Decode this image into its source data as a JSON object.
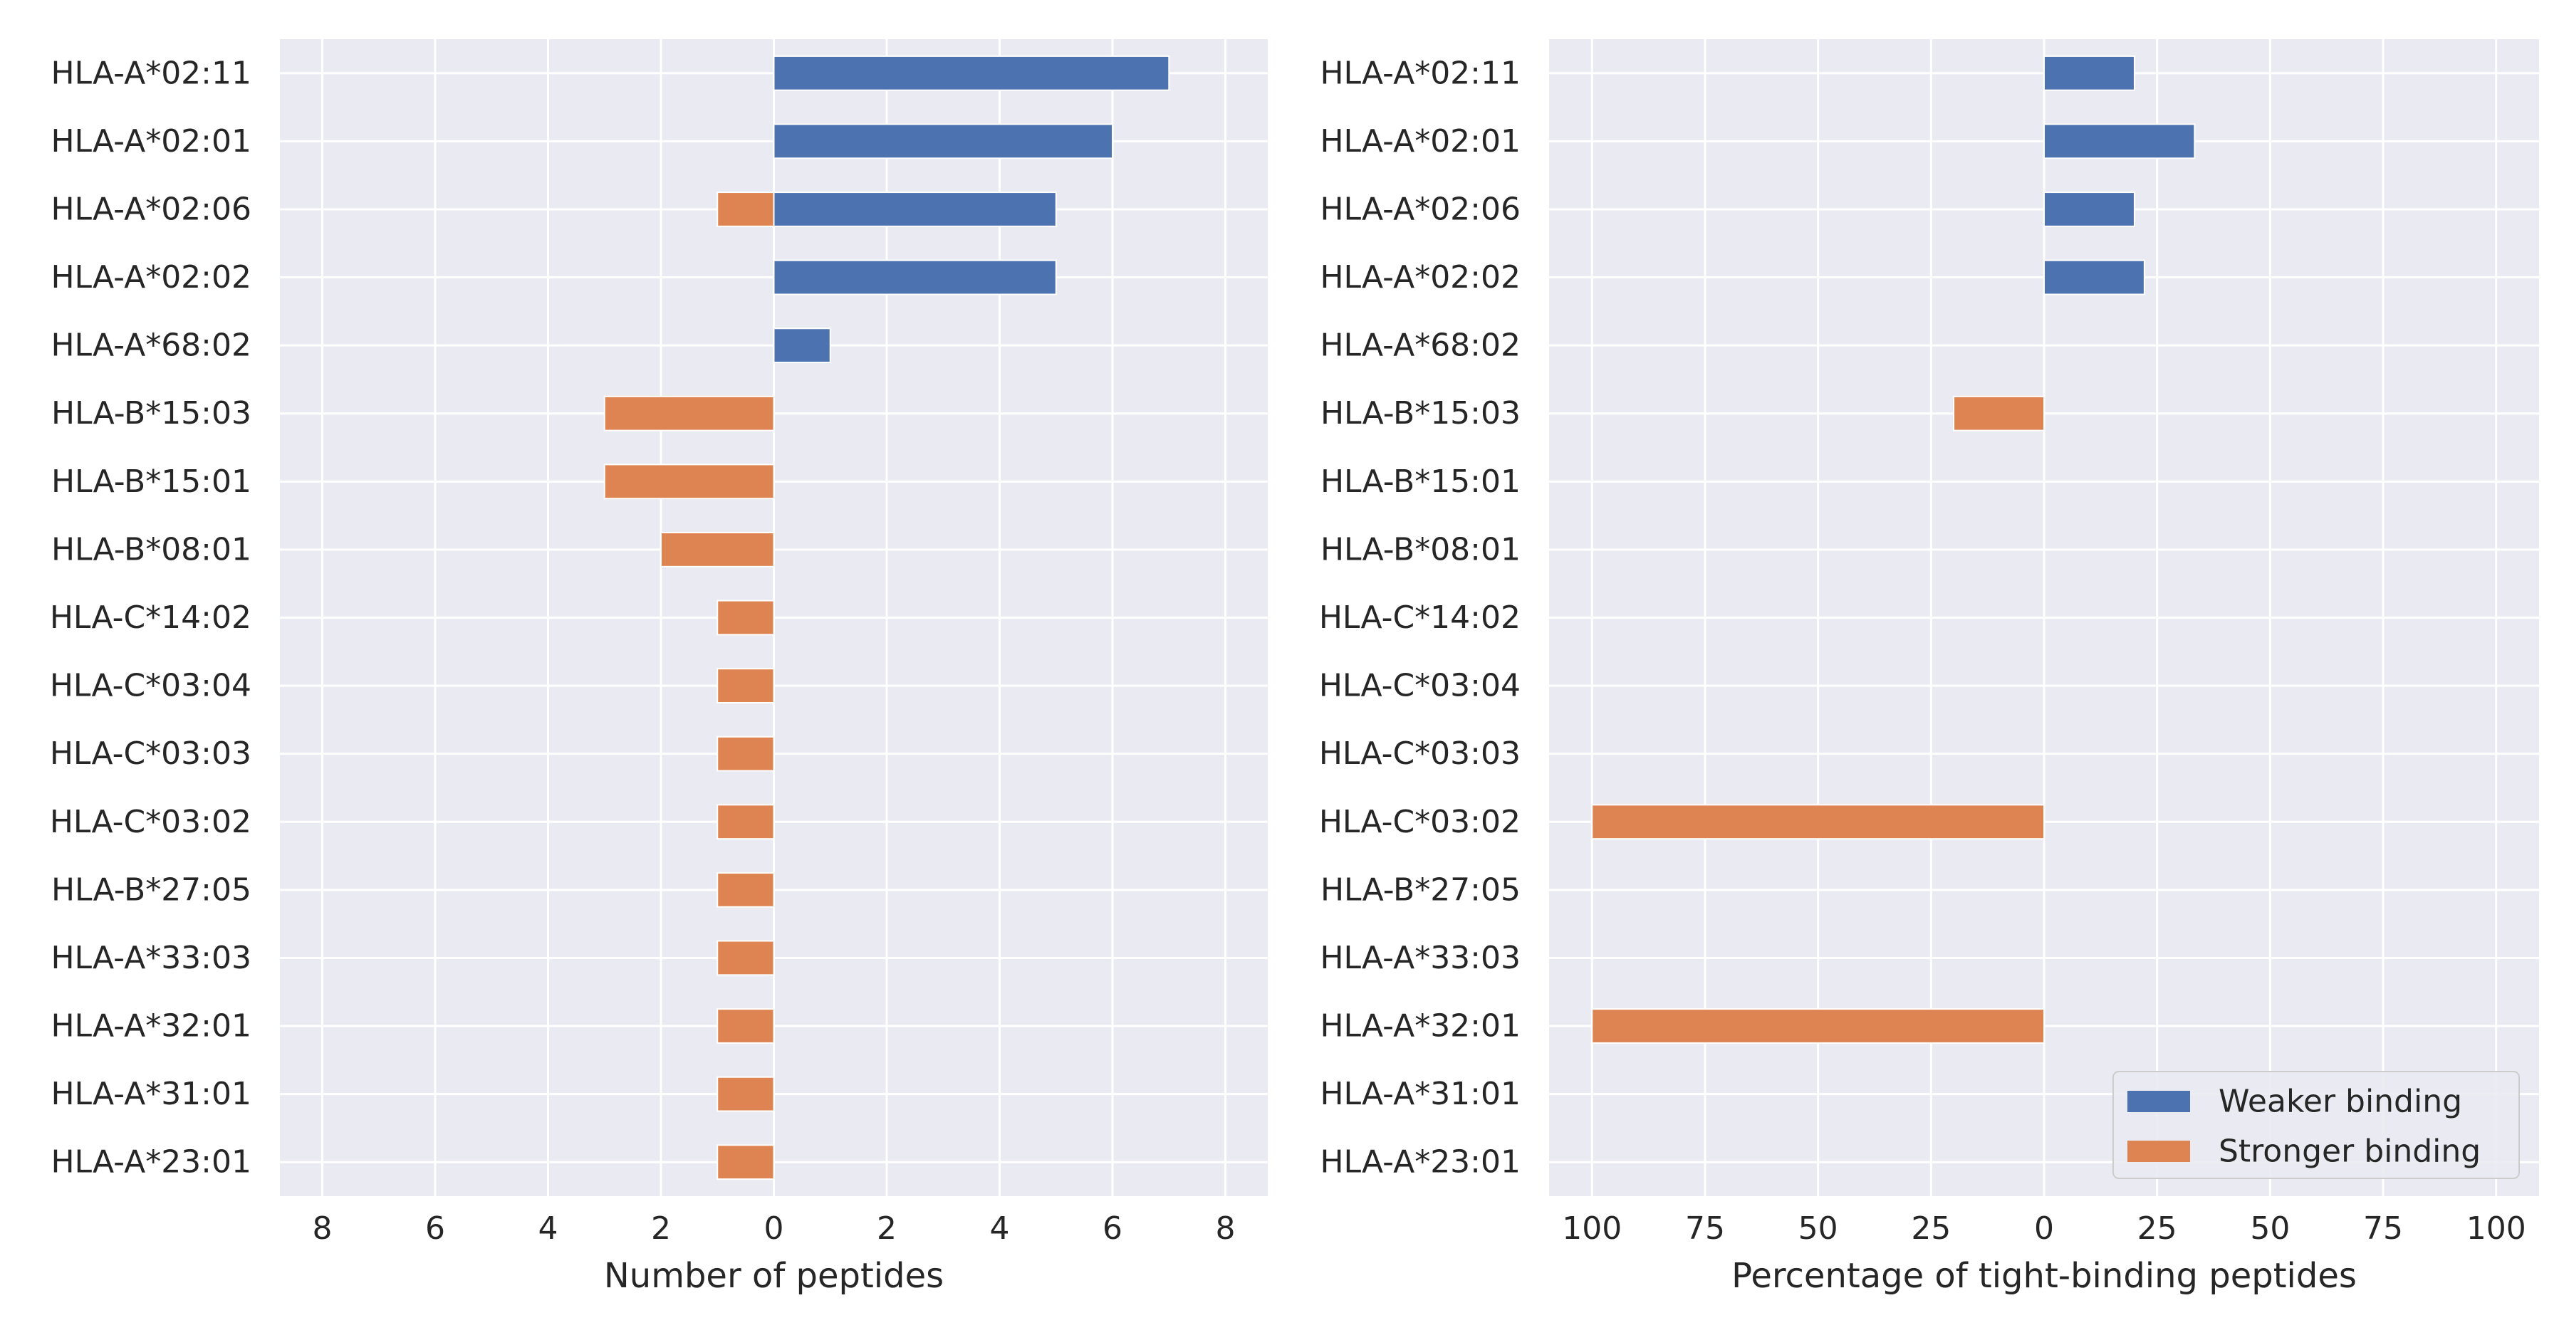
{
  "chart_data": [
    {
      "type": "bar",
      "orientation": "horizontal-diverging",
      "categories": [
        "HLA-A*02:11",
        "HLA-A*02:01",
        "HLA-A*02:06",
        "HLA-A*02:02",
        "HLA-A*68:02",
        "HLA-B*15:03",
        "HLA-B*15:01",
        "HLA-B*08:01",
        "HLA-C*14:02",
        "HLA-C*03:04",
        "HLA-C*03:03",
        "HLA-C*03:02",
        "HLA-B*27:05",
        "HLA-A*33:03",
        "HLA-A*32:01",
        "HLA-A*31:01",
        "HLA-A*23:01"
      ],
      "series": [
        {
          "name": "Weaker binding",
          "direction": "right",
          "color": "#4c72b0",
          "values": [
            7,
            6,
            5,
            5,
            1,
            0,
            0,
            0,
            0,
            0,
            0,
            0,
            0,
            0,
            0,
            0,
            0
          ]
        },
        {
          "name": "Stronger binding",
          "direction": "left",
          "color": "#dd8452",
          "values": [
            0,
            0,
            1,
            0,
            0,
            3,
            3,
            2,
            1,
            1,
            1,
            1,
            1,
            1,
            1,
            1,
            1
          ]
        }
      ],
      "xlabel": "Number of peptides",
      "ylabel": "",
      "xlim": [
        -8.75,
        8.75
      ],
      "xticks": [
        -8,
        -6,
        -4,
        -2,
        0,
        2,
        4,
        6,
        8
      ],
      "xtick_labels": [
        "8",
        "6",
        "4",
        "2",
        "0",
        "2",
        "4",
        "6",
        "8"
      ],
      "grid": true
    },
    {
      "type": "bar",
      "orientation": "horizontal-diverging",
      "categories": [
        "HLA-A*02:11",
        "HLA-A*02:01",
        "HLA-A*02:06",
        "HLA-A*02:02",
        "HLA-A*68:02",
        "HLA-B*15:03",
        "HLA-B*15:01",
        "HLA-B*08:01",
        "HLA-C*14:02",
        "HLA-C*03:04",
        "HLA-C*03:03",
        "HLA-C*03:02",
        "HLA-B*27:05",
        "HLA-A*33:03",
        "HLA-A*32:01",
        "HLA-A*31:01",
        "HLA-A*23:01"
      ],
      "series": [
        {
          "name": "Weaker binding",
          "direction": "right",
          "color": "#4c72b0",
          "values": [
            20,
            33.3,
            20,
            22.2,
            0,
            0,
            0,
            0,
            0,
            0,
            0,
            0,
            0,
            0,
            0,
            0,
            0
          ]
        },
        {
          "name": "Stronger binding",
          "direction": "left",
          "color": "#dd8452",
          "values": [
            0,
            0,
            0,
            0,
            0,
            20,
            0,
            0,
            0,
            0,
            0,
            100,
            0,
            0,
            100,
            0,
            0
          ]
        }
      ],
      "xlabel": "Percentage of tight-binding peptides",
      "ylabel": "",
      "xlim": [
        -109.5,
        109.5
      ],
      "xticks": [
        -100,
        -75,
        -50,
        -25,
        0,
        25,
        50,
        75,
        100
      ],
      "xtick_labels": [
        "100",
        "75",
        "50",
        "25",
        "0",
        "25",
        "50",
        "75",
        "100"
      ],
      "grid": true,
      "legend": {
        "placement": "lower-right",
        "entries": [
          "Weaker binding",
          "Stronger binding"
        ]
      }
    }
  ]
}
